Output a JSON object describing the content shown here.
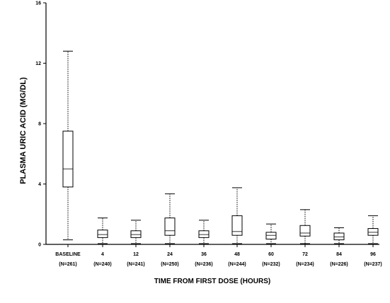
{
  "chart_data": {
    "type": "boxplot",
    "title": "",
    "xlabel": "TIME FROM FIRST DOSE (HOURS)",
    "ylabel": "PLASMA URIC ACID (MG/DL)",
    "ylim": [
      0,
      16
    ],
    "yticks": [
      "0",
      "4",
      "8",
      "12",
      "16"
    ],
    "ytick_values": [
      0,
      4,
      8,
      12,
      16
    ],
    "grid": false,
    "categories": [
      {
        "label": "BASELINE",
        "n": "(N=261)"
      },
      {
        "label": "4",
        "n": "(N=240)"
      },
      {
        "label": "12",
        "n": "(N=241)"
      },
      {
        "label": "24",
        "n": "(N=250)"
      },
      {
        "label": "36",
        "n": "(N=236)"
      },
      {
        "label": "48",
        "n": "(N=244)"
      },
      {
        "label": "60",
        "n": "(N=232)"
      },
      {
        "label": "72",
        "n": "(N=234)"
      },
      {
        "label": "84",
        "n": "(N=226)"
      },
      {
        "label": "96",
        "n": "(N=237)"
      }
    ],
    "boxes": [
      {
        "min": 0.3,
        "q1": 3.8,
        "median": 5.0,
        "q3": 7.5,
        "max": 12.8
      },
      {
        "min": 0.05,
        "q1": 0.45,
        "median": 0.65,
        "q3": 0.95,
        "max": 1.75
      },
      {
        "min": 0.05,
        "q1": 0.45,
        "median": 0.65,
        "q3": 0.9,
        "max": 1.6
      },
      {
        "min": 0.05,
        "q1": 0.6,
        "median": 0.9,
        "q3": 1.75,
        "max": 3.35
      },
      {
        "min": 0.05,
        "q1": 0.45,
        "median": 0.65,
        "q3": 0.9,
        "max": 1.6
      },
      {
        "min": 0.05,
        "q1": 0.6,
        "median": 0.85,
        "q3": 1.9,
        "max": 3.75
      },
      {
        "min": 0.05,
        "q1": 0.35,
        "median": 0.6,
        "q3": 0.8,
        "max": 1.35
      },
      {
        "min": 0.05,
        "q1": 0.55,
        "median": 0.75,
        "q3": 1.25,
        "max": 2.3
      },
      {
        "min": 0.05,
        "q1": 0.3,
        "median": 0.5,
        "q3": 0.75,
        "max": 1.1
      },
      {
        "min": 0.05,
        "q1": 0.6,
        "median": 0.8,
        "q3": 1.05,
        "max": 1.9
      }
    ]
  }
}
